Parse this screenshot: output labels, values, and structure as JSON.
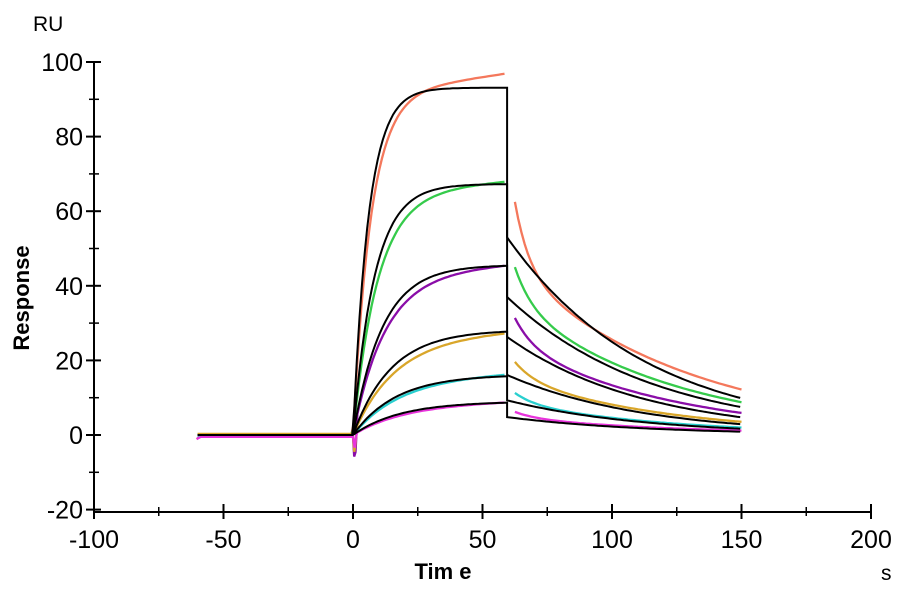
{
  "page": {
    "background": "#FFFFFF",
    "description": "SPR sensorgram: six concentration response curves (colored) overlaid with black kinetic fit curves; association phase 0-59 s, dissociation 59-150 s"
  },
  "chart_data": {
    "type": "line",
    "chart_kind": "SPR-sensorgram-with-fits",
    "title": "",
    "xlabel": "Tim e",
    "ylabel": "Response",
    "x_axis": {
      "title": "Tim e",
      "unit_label": "s",
      "range": [
        -100,
        200
      ],
      "major_ticks": [
        -100,
        -50,
        0,
        50,
        100,
        150,
        200
      ],
      "minor_ticks": [
        -75,
        -25,
        25,
        75,
        125,
        175
      ]
    },
    "y_axis": {
      "title": "Response",
      "unit_label": "RU",
      "range": [
        -20,
        100
      ],
      "major_ticks": [
        -20,
        0,
        20,
        40,
        60,
        80,
        100
      ],
      "minor_ticks": [
        -10,
        10,
        30,
        50,
        70,
        90
      ]
    },
    "grid": false,
    "legend": "none",
    "phases": {
      "baseline_start_s": -60,
      "injection_start_s": 0,
      "association_end_s": 59,
      "dissociation_end_s": 150,
      "injection_dip_RU": -5.8
    },
    "series": [
      {
        "name": "data-curve-1",
        "role": "data",
        "color": "#F4785C",
        "baseline_offset": -0.25,
        "start_blob": true,
        "assoc": {
          "Req": 91.0,
          "k": 0.145,
          "drift": 0.1
        },
        "plateau_RU": 96.5,
        "dissoc": {
          "t_start": 62.5,
          "a": 18.0,
          "k1": 0.18,
          "b": 44.5,
          "k2": 0.0148
        },
        "dissoc_start_RU": 62.5,
        "end_RU": 12.2
      },
      {
        "name": "data-curve-2",
        "role": "data",
        "color": "#35CB4B",
        "baseline_offset": 0.2,
        "assoc": {
          "Req": 64.5,
          "k": 0.105,
          "drift": 0.06
        },
        "plateau_RU": 67.8,
        "dissoc": {
          "t_start": 62.5,
          "a": 10.0,
          "k1": 0.15,
          "b": 35.0,
          "k2": 0.0158
        },
        "dissoc_start_RU": 45.0,
        "end_RU": 8.8
      },
      {
        "name": "data-curve-3",
        "role": "data",
        "color": "#8A0DA8",
        "baseline_offset": -0.4,
        "spike": [
          [
            0,
            -0.5
          ],
          [
            0.45,
            -5.8
          ],
          [
            0.95,
            -4.6
          ],
          [
            1.4,
            1.0
          ]
        ],
        "assoc": {
          "Req": 42.5,
          "k": 0.082,
          "drift": 0.055
        },
        "plateau_RU": 45.3,
        "dissoc": {
          "t_start": 62.5,
          "a": 7.0,
          "k1": 0.14,
          "b": 24.4,
          "k2": 0.0162
        },
        "dissoc_start_RU": 31.4,
        "end_RU": 5.9
      },
      {
        "name": "data-curve-4",
        "role": "data",
        "color": "#D9A62A",
        "baseline_offset": 0.3,
        "spike": [
          [
            0,
            -0.4
          ],
          [
            0.5,
            -4.5
          ],
          [
            1.0,
            -2.0
          ],
          [
            1.4,
            0.8
          ]
        ],
        "assoc": {
          "Req": 25.2,
          "k": 0.063,
          "drift": 0.045
        },
        "plateau_RU": 27.1,
        "dissoc": {
          "t_start": 62.5,
          "a": 4.5,
          "k1": 0.13,
          "b": 15.1,
          "k2": 0.0166
        },
        "dissoc_start_RU": 19.6,
        "end_RU": 3.5
      },
      {
        "name": "data-curve-5",
        "role": "data",
        "color": "#29CFCF",
        "baseline_offset": -0.15,
        "assoc": {
          "Req": 14.6,
          "k": 0.057,
          "drift": 0.035
        },
        "plateau_RU": 16.1,
        "dissoc": {
          "t_start": 62.5,
          "a": 2.8,
          "k1": 0.13,
          "b": 8.5,
          "k2": 0.0165
        },
        "dissoc_start_RU": 11.3,
        "end_RU": 2.0
      },
      {
        "name": "data-curve-6",
        "role": "data",
        "color": "#E833DC",
        "baseline_offset": -0.5,
        "start_blob": true,
        "spike": [
          [
            0,
            -0.4
          ],
          [
            0.6,
            -3.4
          ],
          [
            1.1,
            -1.0
          ],
          [
            1.5,
            0.6
          ]
        ],
        "assoc": {
          "Req": 7.9,
          "k": 0.052,
          "drift": 0.02
        },
        "plateau_RU": 8.7,
        "dissoc": {
          "t_start": 62.5,
          "a": 1.6,
          "k1": 0.12,
          "b": 4.6,
          "k2": 0.0155
        },
        "dissoc_start_RU": 6.2,
        "end_RU": 1.2
      },
      {
        "name": "fit-curve-1",
        "role": "fit",
        "color": "#000000",
        "assoc": {
          "Req": 93.1,
          "k": 0.165,
          "drift": 0
        },
        "plateau_RU": 93.0,
        "dissoc": {
          "t_start": 59.5,
          "D0": 53.0,
          "koff": 0.0186
        },
        "dissoc_start_RU": 53.0,
        "end_RU": 9.8
      },
      {
        "name": "fit-curve-2",
        "role": "fit",
        "color": "#000000",
        "assoc": {
          "Req": 67.3,
          "k": 0.12,
          "drift": 0
        },
        "plateau_RU": 67.2,
        "dissoc": {
          "t_start": 59.5,
          "D0": 37.0,
          "koff": 0.0177
        },
        "dissoc_start_RU": 37.0,
        "end_RU": 7.4
      },
      {
        "name": "fit-curve-3",
        "role": "fit",
        "color": "#000000",
        "assoc": {
          "Req": 45.6,
          "k": 0.088,
          "drift": 0
        },
        "plateau_RU": 45.3,
        "dissoc": {
          "t_start": 59.5,
          "D0": 26.3,
          "koff": 0.0189
        },
        "dissoc_start_RU": 26.3,
        "end_RU": 4.8
      },
      {
        "name": "fit-curve-4",
        "role": "fit",
        "color": "#000000",
        "assoc": {
          "Req": 28.2,
          "k": 0.068,
          "drift": 0
        },
        "plateau_RU": 27.7,
        "dissoc": {
          "t_start": 59.5,
          "D0": 16.1,
          "koff": 0.019
        },
        "dissoc_start_RU": 16.1,
        "end_RU": 2.9
      },
      {
        "name": "fit-curve-5",
        "role": "fit",
        "color": "#000000",
        "assoc": {
          "Req": 16.2,
          "k": 0.06,
          "drift": 0
        },
        "plateau_RU": 15.7,
        "dissoc": {
          "t_start": 59.5,
          "D0": 9.3,
          "koff": 0.0189
        },
        "dissoc_start_RU": 9.3,
        "end_RU": 1.7
      },
      {
        "name": "fit-curve-6",
        "role": "fit",
        "color": "#000000",
        "assoc": {
          "Req": 9.0,
          "k": 0.055,
          "drift": 0
        },
        "plateau_RU": 8.95,
        "dissoc": {
          "t_start": 59.5,
          "D0": 4.8,
          "koff": 0.0186
        },
        "dissoc_start_RU": 4.8,
        "end_RU": 0.9
      }
    ]
  }
}
